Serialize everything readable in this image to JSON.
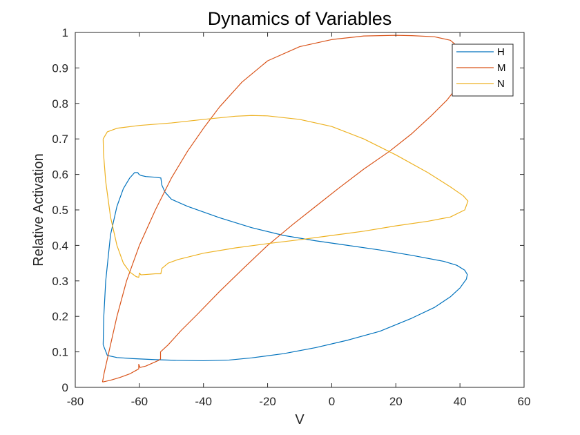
{
  "chart_data": {
    "type": "line",
    "title": "Dynamics of Variables",
    "xlabel": "V",
    "ylabel": "Relative Activation",
    "xlim": [
      -80,
      60
    ],
    "ylim": [
      0,
      1
    ],
    "xticks": [
      -80,
      -60,
      -40,
      -20,
      0,
      20,
      40,
      60
    ],
    "yticks": [
      0,
      0.1,
      0.2,
      0.3,
      0.4,
      0.5,
      0.6,
      0.7,
      0.8,
      0.9,
      1
    ],
    "xtick_labels": [
      "-80",
      "-60",
      "-40",
      "-20",
      "0",
      "20",
      "40",
      "60"
    ],
    "ytick_labels": [
      "0",
      "0.1",
      "0.2",
      "0.3",
      "0.4",
      "0.5",
      "0.6",
      "0.7",
      "0.8",
      "0.9",
      "1"
    ],
    "grid": false,
    "legend_position": "top-right",
    "series": [
      {
        "name": "H",
        "color": "#0072BD",
        "points": [
          [
            -71.3,
            0.12
          ],
          [
            -70,
            0.09
          ],
          [
            -67,
            0.084
          ],
          [
            -62,
            0.081
          ],
          [
            -55,
            0.078
          ],
          [
            -48,
            0.076
          ],
          [
            -40,
            0.075
          ],
          [
            -32,
            0.077
          ],
          [
            -25,
            0.083
          ],
          [
            -15,
            0.095
          ],
          [
            -5,
            0.112
          ],
          [
            5,
            0.133
          ],
          [
            15,
            0.158
          ],
          [
            25,
            0.195
          ],
          [
            32,
            0.225
          ],
          [
            37,
            0.255
          ],
          [
            40,
            0.28
          ],
          [
            42,
            0.305
          ],
          [
            42.3,
            0.318
          ],
          [
            41.5,
            0.33
          ],
          [
            39,
            0.344
          ],
          [
            35,
            0.355
          ],
          [
            25,
            0.372
          ],
          [
            15,
            0.387
          ],
          [
            5,
            0.4
          ],
          [
            -5,
            0.413
          ],
          [
            -15,
            0.428
          ],
          [
            -25,
            0.45
          ],
          [
            -35,
            0.478
          ],
          [
            -45,
            0.51
          ],
          [
            -50,
            0.53
          ],
          [
            -52,
            0.55
          ],
          [
            -53,
            0.57
          ],
          [
            -53.3,
            0.59
          ],
          [
            -55,
            0.592
          ],
          [
            -58,
            0.594
          ],
          [
            -59.5,
            0.597
          ],
          [
            -60.1,
            0.6
          ],
          [
            -60.5,
            0.605
          ],
          [
            -61.5,
            0.605
          ],
          [
            -63,
            0.59
          ],
          [
            -65,
            0.56
          ],
          [
            -67,
            0.51
          ],
          [
            -69,
            0.43
          ],
          [
            -70.5,
            0.3
          ],
          [
            -71.1,
            0.2
          ],
          [
            -71.3,
            0.12
          ]
        ]
      },
      {
        "name": "M",
        "color": "#D95319",
        "points": [
          [
            -71.5,
            0.015
          ],
          [
            -69,
            0.02
          ],
          [
            -66,
            0.028
          ],
          [
            -63,
            0.038
          ],
          [
            -61,
            0.048
          ],
          [
            -60.2,
            0.052
          ],
          [
            -60.2,
            0.065
          ],
          [
            -59.8,
            0.056
          ],
          [
            -58,
            0.06
          ],
          [
            -56,
            0.068
          ],
          [
            -54,
            0.076
          ],
          [
            -53.4,
            0.08
          ],
          [
            -53.4,
            0.1
          ],
          [
            -51,
            0.12
          ],
          [
            -47,
            0.16
          ],
          [
            -42,
            0.205
          ],
          [
            -35,
            0.27
          ],
          [
            -27,
            0.34
          ],
          [
            -20,
            0.4
          ],
          [
            -12,
            0.46
          ],
          [
            -5,
            0.51
          ],
          [
            2,
            0.56
          ],
          [
            10,
            0.615
          ],
          [
            18,
            0.665
          ],
          [
            25,
            0.715
          ],
          [
            31,
            0.765
          ],
          [
            36,
            0.81
          ],
          [
            39.5,
            0.85
          ],
          [
            41.5,
            0.89
          ],
          [
            41.5,
            0.925
          ],
          [
            40,
            0.955
          ],
          [
            37,
            0.978
          ],
          [
            32,
            0.988
          ],
          [
            25,
            0.991
          ],
          [
            20,
            0.992
          ],
          [
            10,
            0.99
          ],
          [
            0,
            0.98
          ],
          [
            -10,
            0.96
          ],
          [
            -20,
            0.92
          ],
          [
            -28,
            0.86
          ],
          [
            -35,
            0.79
          ],
          [
            -40,
            0.73
          ],
          [
            -45,
            0.665
          ],
          [
            -50,
            0.59
          ],
          [
            -55,
            0.5
          ],
          [
            -60,
            0.4
          ],
          [
            -64,
            0.3
          ],
          [
            -67,
            0.2
          ],
          [
            -69.5,
            0.1
          ],
          [
            -71,
            0.04
          ],
          [
            -71.5,
            0.015
          ]
        ]
      },
      {
        "name": "N",
        "color": "#EDB120",
        "points": [
          [
            -71.3,
            0.7
          ],
          [
            -70,
            0.72
          ],
          [
            -67,
            0.73
          ],
          [
            -60,
            0.738
          ],
          [
            -50,
            0.745
          ],
          [
            -40,
            0.755
          ],
          [
            -30,
            0.764
          ],
          [
            -25,
            0.766
          ],
          [
            -20,
            0.765
          ],
          [
            -10,
            0.755
          ],
          [
            0,
            0.735
          ],
          [
            10,
            0.7
          ],
          [
            20,
            0.655
          ],
          [
            30,
            0.605
          ],
          [
            37,
            0.565
          ],
          [
            41,
            0.54
          ],
          [
            42.5,
            0.525
          ],
          [
            41.5,
            0.5
          ],
          [
            37,
            0.48
          ],
          [
            30,
            0.468
          ],
          [
            20,
            0.455
          ],
          [
            10,
            0.44
          ],
          [
            0,
            0.428
          ],
          [
            -10,
            0.416
          ],
          [
            -20,
            0.405
          ],
          [
            -30,
            0.393
          ],
          [
            -40,
            0.378
          ],
          [
            -48,
            0.36
          ],
          [
            -51,
            0.35
          ],
          [
            -53,
            0.335
          ],
          [
            -53.3,
            0.32
          ],
          [
            -55,
            0.32
          ],
          [
            -58,
            0.318
          ],
          [
            -59.5,
            0.317
          ],
          [
            -60,
            0.322
          ],
          [
            -60.2,
            0.31
          ],
          [
            -61,
            0.312
          ],
          [
            -63,
            0.325
          ],
          [
            -65,
            0.35
          ],
          [
            -67,
            0.4
          ],
          [
            -69,
            0.48
          ],
          [
            -70.5,
            0.58
          ],
          [
            -71.2,
            0.66
          ],
          [
            -71.3,
            0.7
          ]
        ]
      }
    ]
  }
}
